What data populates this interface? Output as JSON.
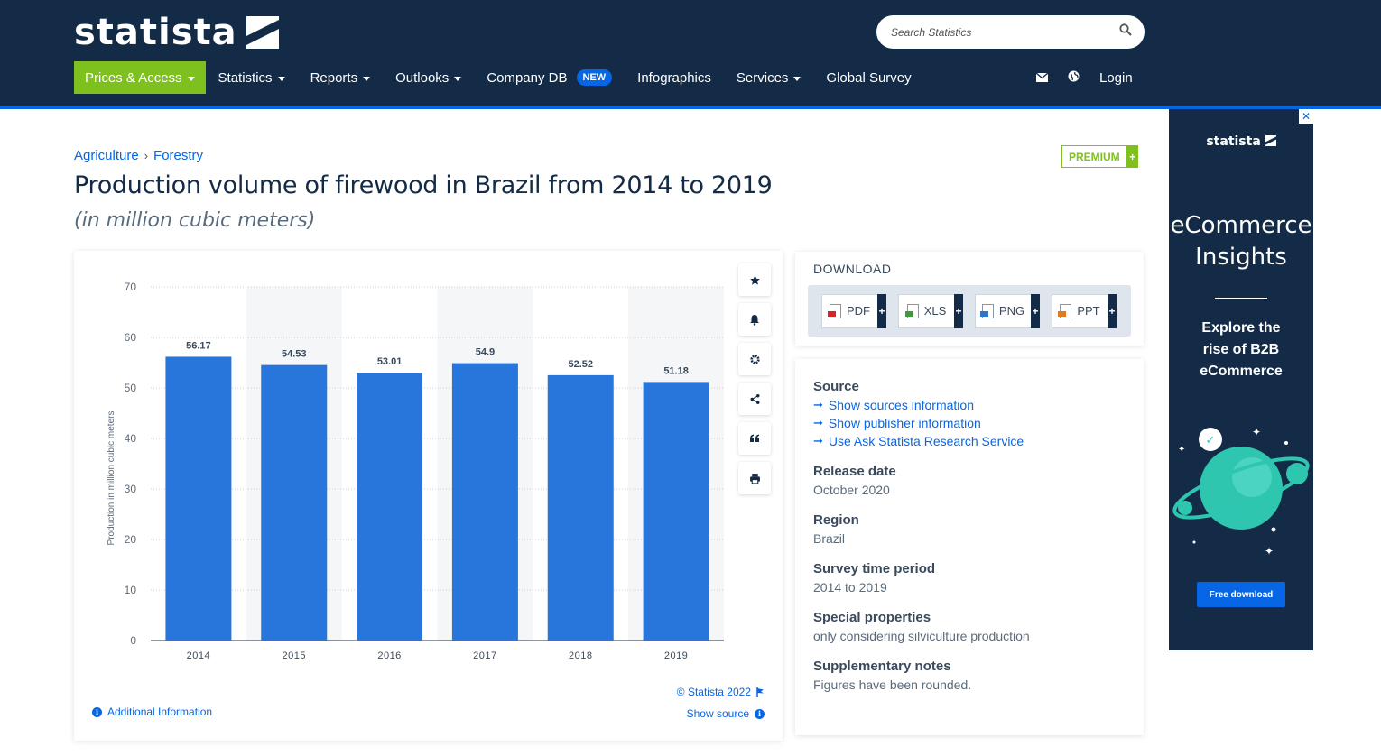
{
  "header": {
    "logo_text": "statista",
    "search_placeholder": "Search Statistics",
    "nav": [
      {
        "label": "Prices & Access"
      },
      {
        "label": "Statistics"
      },
      {
        "label": "Reports"
      },
      {
        "label": "Outlooks"
      },
      {
        "label": "Company DB"
      },
      {
        "label": "Infographics"
      },
      {
        "label": "Services"
      },
      {
        "label": "Global Survey"
      }
    ],
    "new_badge": "NEW",
    "login": "Login"
  },
  "breadcrumb": [
    "Agriculture",
    "Forestry"
  ],
  "premium_label": "PREMIUM",
  "premium_plus": "+",
  "title": "Production volume of firewood in Brazil from 2014 to 2019",
  "subtitle": "(in million cubic meters)",
  "chart_data": {
    "type": "bar",
    "categories": [
      "2014",
      "2015",
      "2016",
      "2017",
      "2018",
      "2019"
    ],
    "values": [
      56.17,
      54.53,
      53.01,
      54.9,
      52.52,
      51.18
    ],
    "value_labels": [
      "56.17",
      "54.53",
      "53.01",
      "54.9",
      "52.52",
      "51.18"
    ],
    "ylabel": "Production in million cubic meters",
    "xlabel": "",
    "ylim": [
      0,
      70
    ],
    "yticks": [
      0,
      10,
      20,
      30,
      40,
      50,
      60,
      70
    ],
    "grid": true,
    "bar_color": "#2875dc"
  },
  "chart_footer": {
    "copyright": "© Statista 2022",
    "show_source": "Show source",
    "additional_info": "Additional Information"
  },
  "download": {
    "title": "DOWNLOAD",
    "formats": [
      "PDF",
      "XLS",
      "PNG",
      "PPT"
    ]
  },
  "details": {
    "source_h": "Source",
    "source_links": [
      "Show sources information",
      "Show publisher information",
      "Use Ask Statista Research Service"
    ],
    "release_h": "Release date",
    "release_v": "October 2020",
    "region_h": "Region",
    "region_v": "Brazil",
    "survey_h": "Survey time period",
    "survey_v": "2014 to 2019",
    "special_h": "Special properties",
    "special_v": "only considering silviculture production",
    "notes_h": "Supplementary notes",
    "notes_v": "Figures have been rounded."
  },
  "ad": {
    "logo": "statista",
    "headline_1": "eCommerce",
    "headline_2": "Insights",
    "sub_1": "Explore the",
    "sub_2": "rise of B2B",
    "sub_3": "eCommerce",
    "button": "Free download",
    "close": "✕"
  },
  "colors": {
    "header_bg": "#132b47",
    "accent": "#0666e5",
    "green": "#7ec01e"
  }
}
